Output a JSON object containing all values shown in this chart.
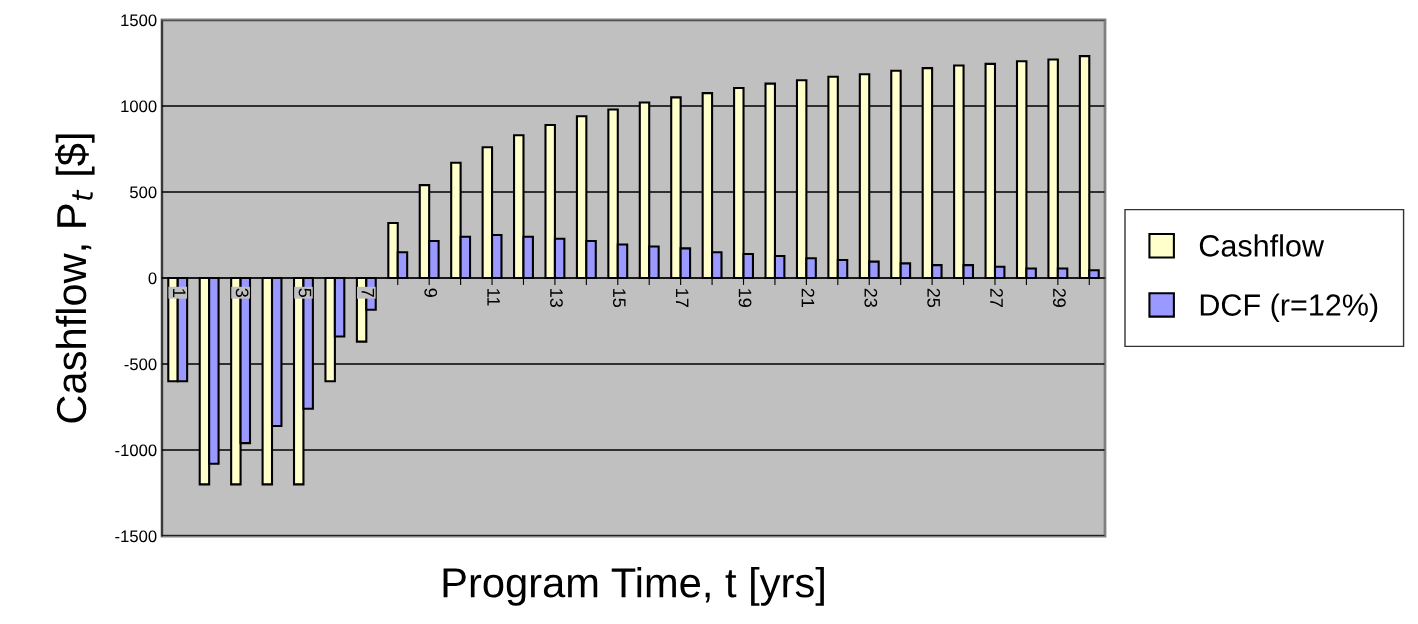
{
  "chart_data": {
    "type": "bar",
    "xlabel": "Program Time, t [yrs]",
    "ylabel": "Cashflow, P$_{t}$ [$]",
    "categories": [
      "1",
      null,
      "3",
      null,
      "5",
      null,
      "7",
      null,
      "9",
      null,
      "11",
      null,
      "13",
      null,
      "15",
      null,
      "17",
      null,
      "19",
      null,
      "21",
      null,
      "23",
      null,
      "25",
      null,
      "27",
      null,
      "29",
      null
    ],
    "series": [
      {
        "name": "Cashflow",
        "color": "#ffffcc",
        "values": [
          -600,
          -1200,
          -1200,
          -1200,
          -1200,
          -600,
          -370,
          320,
          540,
          670,
          760,
          830,
          890,
          940,
          980,
          1020,
          1050,
          1075,
          1105,
          1130,
          1150,
          1170,
          1185,
          1205,
          1220,
          1235,
          1245,
          1260,
          1270,
          1290
        ]
      },
      {
        "name": "DCF (r=12%)",
        "color": "#9999ff",
        "values": [
          -600,
          -1080,
          -960,
          -860,
          -760,
          -340,
          -185,
          150,
          215,
          240,
          250,
          240,
          228,
          215,
          195,
          183,
          172,
          150,
          140,
          128,
          115,
          105,
          95,
          85,
          75,
          75,
          65,
          55,
          55,
          45
        ]
      }
    ],
    "ylim": [
      -1500,
      1500
    ],
    "yticks": [
      -1500,
      -1000,
      -500,
      0,
      500,
      1000,
      1500
    ],
    "grid": "y",
    "legend": "right"
  }
}
